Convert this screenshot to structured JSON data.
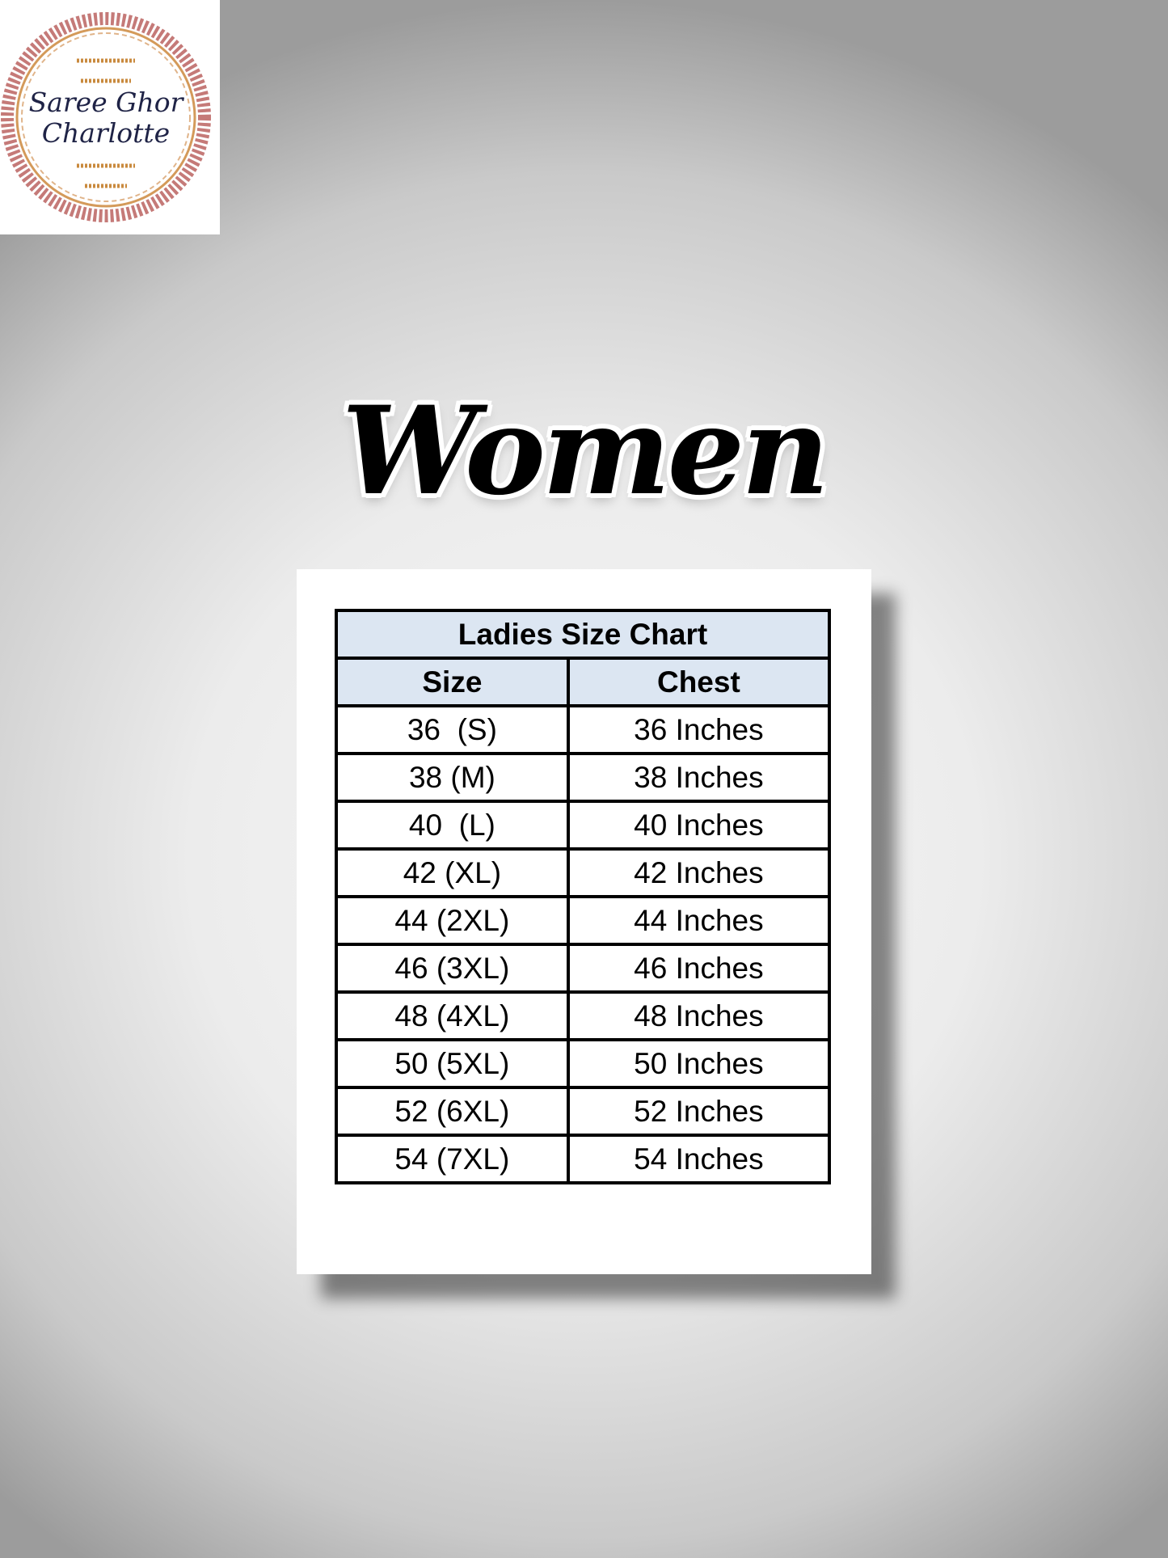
{
  "logo": {
    "line1": "Saree Ghor",
    "line2": "Charlotte",
    "colors": {
      "ring": "#b5535a",
      "ornament": "#c98a3e",
      "text": "#1f2346"
    }
  },
  "title": "Women",
  "table": {
    "caption": "Ladies Size Chart",
    "headers": [
      "Size",
      "Chest"
    ],
    "rows": [
      [
        "36  (S)",
        "36 Inches"
      ],
      [
        "38 (M)",
        "38 Inches"
      ],
      [
        "40  (L)",
        "40 Inches"
      ],
      [
        "42 (XL)",
        "42 Inches"
      ],
      [
        "44 (2XL)",
        "44 Inches"
      ],
      [
        "46 (3XL)",
        "46 Inches"
      ],
      [
        "48 (4XL)",
        "48 Inches"
      ],
      [
        "50 (5XL)",
        "50 Inches"
      ],
      [
        "52 (6XL)",
        "52 Inches"
      ],
      [
        "54 (7XL)",
        "54 Inches"
      ]
    ],
    "header_bg": "#dce6f2"
  }
}
